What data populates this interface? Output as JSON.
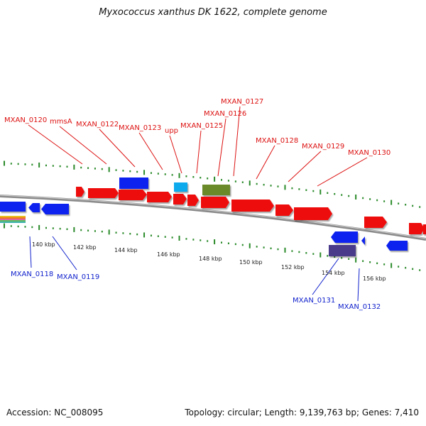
{
  "title": "Myxococcus xanthus DK 1622, complete genome",
  "footer": {
    "accession": "Accession: NC_008095",
    "summary": "Topology: circular; Length: 9,139,763 bp; Genes: 7,410"
  },
  "colors": {
    "forward_gene": "#ee1111",
    "reverse_gene": "#1122ee",
    "backbone": "#8a8a8a",
    "tick": "#2a8a2a",
    "forward_label": "#dd1111",
    "reverse_label": "#1122cc"
  },
  "scale_labels": [
    "140 kbp",
    "142 kbp",
    "144 kbp",
    "146 kbp",
    "148 kbp",
    "150 kbp",
    "152 kbp",
    "154 kbp",
    "156 kbp"
  ],
  "forward_gene_labels": [
    "MXAN_0120",
    "mmsA",
    "MXAN_0122",
    "MXAN_0123",
    "upp",
    "MXAN_0125",
    "MXAN_0126",
    "MXAN_0127",
    "MXAN_0128",
    "MXAN_0129",
    "MXAN_0130"
  ],
  "reverse_gene_labels": [
    "MXAN_0118",
    "MXAN_0119",
    "MXAN_0131",
    "MXAN_0132"
  ]
}
